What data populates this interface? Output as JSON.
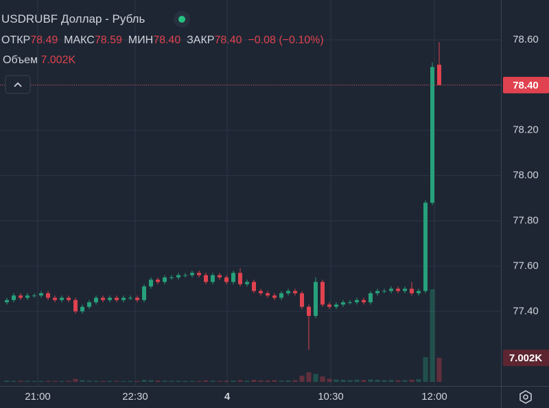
{
  "chart_data": {
    "type": "candlestick",
    "legend": {
      "symbol": "USDRUBF Доллар - Рубль",
      "open_label": "ОТКР",
      "open": 78.49,
      "high_label": "МАКС",
      "high": 78.59,
      "low_label": "МИН",
      "low": {
        "value": 78.4,
        "label": "78.40"
      },
      "close_label": "ЗАКР",
      "close": {
        "value": 78.4,
        "label": "78.40"
      },
      "change": "−0.08 (−0.10%)",
      "volume_label": "Объем",
      "volume": {
        "value": 7002,
        "label": "7.002K"
      }
    },
    "up_color": "#27a17b",
    "down_color": "#e0424f",
    "open": [
      77.44,
      77.45,
      77.47,
      77.46,
      77.47,
      77.47,
      77.48,
      77.46,
      77.45,
      77.46,
      77.45,
      77.4,
      77.42,
      77.44,
      77.46,
      77.45,
      77.46,
      77.45,
      77.46,
      77.46,
      77.45,
      77.51,
      77.54,
      77.53,
      77.55,
      77.55,
      77.56,
      77.56,
      77.57,
      77.56,
      77.53,
      77.56,
      77.55,
      77.53,
      77.57,
      77.52,
      77.53,
      77.49,
      77.48,
      77.47,
      77.46,
      77.48,
      77.49,
      77.48,
      77.42,
      77.38,
      77.53,
      77.43,
      77.42,
      77.43,
      77.44,
      77.44,
      77.45,
      77.44,
      77.48,
      77.49,
      77.49,
      77.5,
      77.49,
      77.5,
      77.48,
      77.49,
      77.88,
      78.49
    ],
    "high": [
      77.46,
      77.48,
      77.48,
      77.48,
      77.48,
      77.49,
      77.49,
      77.47,
      77.47,
      77.47,
      77.46,
      77.43,
      77.45,
      77.47,
      77.47,
      77.47,
      77.47,
      77.47,
      77.47,
      77.47,
      77.52,
      77.55,
      77.55,
      77.56,
      77.56,
      77.57,
      77.57,
      77.58,
      77.58,
      77.57,
      77.57,
      77.57,
      77.56,
      77.58,
      77.59,
      77.54,
      77.54,
      77.5,
      77.49,
      77.48,
      77.49,
      77.5,
      77.5,
      77.49,
      77.43,
      77.55,
      77.54,
      77.44,
      77.44,
      77.45,
      77.45,
      77.46,
      77.46,
      77.49,
      77.5,
      77.5,
      77.51,
      77.51,
      77.51,
      77.53,
      77.5,
      77.89,
      78.5,
      78.59
    ],
    "low": [
      77.43,
      77.44,
      77.45,
      77.45,
      77.46,
      77.46,
      77.45,
      77.44,
      77.44,
      77.44,
      77.39,
      77.39,
      77.41,
      77.43,
      77.44,
      77.44,
      77.44,
      77.44,
      77.45,
      77.44,
      77.44,
      77.5,
      77.52,
      77.52,
      77.54,
      77.54,
      77.55,
      77.55,
      77.55,
      77.52,
      77.52,
      77.54,
      77.52,
      77.52,
      77.51,
      77.51,
      77.48,
      77.47,
      77.46,
      77.45,
      77.45,
      77.47,
      77.47,
      77.41,
      77.23,
      77.37,
      77.42,
      77.41,
      77.41,
      77.42,
      77.43,
      77.43,
      77.43,
      77.43,
      77.47,
      77.48,
      77.48,
      77.48,
      77.48,
      77.47,
      77.47,
      77.48,
      77.87,
      78.4
    ],
    "close": [
      77.45,
      77.47,
      77.46,
      77.47,
      77.47,
      77.48,
      77.46,
      77.45,
      77.46,
      77.45,
      77.4,
      77.42,
      77.44,
      77.46,
      77.45,
      77.46,
      77.45,
      77.46,
      77.46,
      77.45,
      77.51,
      77.54,
      77.53,
      77.55,
      77.55,
      77.56,
      77.56,
      77.57,
      77.56,
      77.53,
      77.56,
      77.55,
      77.53,
      77.57,
      77.52,
      77.53,
      77.49,
      77.48,
      77.47,
      77.46,
      77.48,
      77.49,
      77.48,
      77.42,
      77.38,
      77.53,
      77.43,
      77.42,
      77.43,
      77.44,
      77.44,
      77.45,
      77.44,
      77.48,
      77.49,
      77.49,
      77.5,
      77.49,
      77.5,
      77.48,
      77.49,
      77.88,
      78.48,
      78.4
    ],
    "volume": [
      400,
      300,
      350,
      300,
      250,
      300,
      280,
      300,
      260,
      320,
      900,
      500,
      350,
      300,
      280,
      300,
      250,
      260,
      300,
      280,
      600,
      500,
      400,
      350,
      300,
      320,
      300,
      280,
      300,
      450,
      350,
      300,
      320,
      400,
      500,
      350,
      600,
      450,
      400,
      500,
      350,
      400,
      500,
      1800,
      2800,
      2300,
      1600,
      900,
      700,
      600,
      500,
      650,
      550,
      700,
      600,
      500,
      550,
      450,
      500,
      650,
      800,
      7200,
      27000,
      7002
    ],
    "xlim": [
      -1,
      72
    ],
    "xticks": [
      {
        "value": 4.5,
        "label": "21:00"
      },
      {
        "value": 18.7,
        "label": "22:30"
      },
      {
        "value": 32.1,
        "label": "4"
      },
      {
        "value": 47.2,
        "label": "10:30"
      },
      {
        "value": 62.3,
        "label": "12:00"
      }
    ],
    "ylim": [
      77.07,
      78.776
    ],
    "yticks": [
      {
        "value": 77.4,
        "label": "77.40"
      },
      {
        "value": 77.6,
        "label": "77.60"
      },
      {
        "value": 77.8,
        "label": "77.80"
      },
      {
        "value": 78.0,
        "label": "78.00"
      },
      {
        "value": 78.2,
        "label": "78.20"
      },
      {
        "value": 78.4,
        "label": "78.40"
      },
      {
        "value": 78.6,
        "label": "78.60"
      }
    ],
    "volume_lim": [
      0,
      28000
    ],
    "last_price": {
      "value": 78.4,
      "label": "78.40"
    },
    "last_volume": {
      "value": 7002,
      "label": "7.002K"
    },
    "grid": true
  }
}
